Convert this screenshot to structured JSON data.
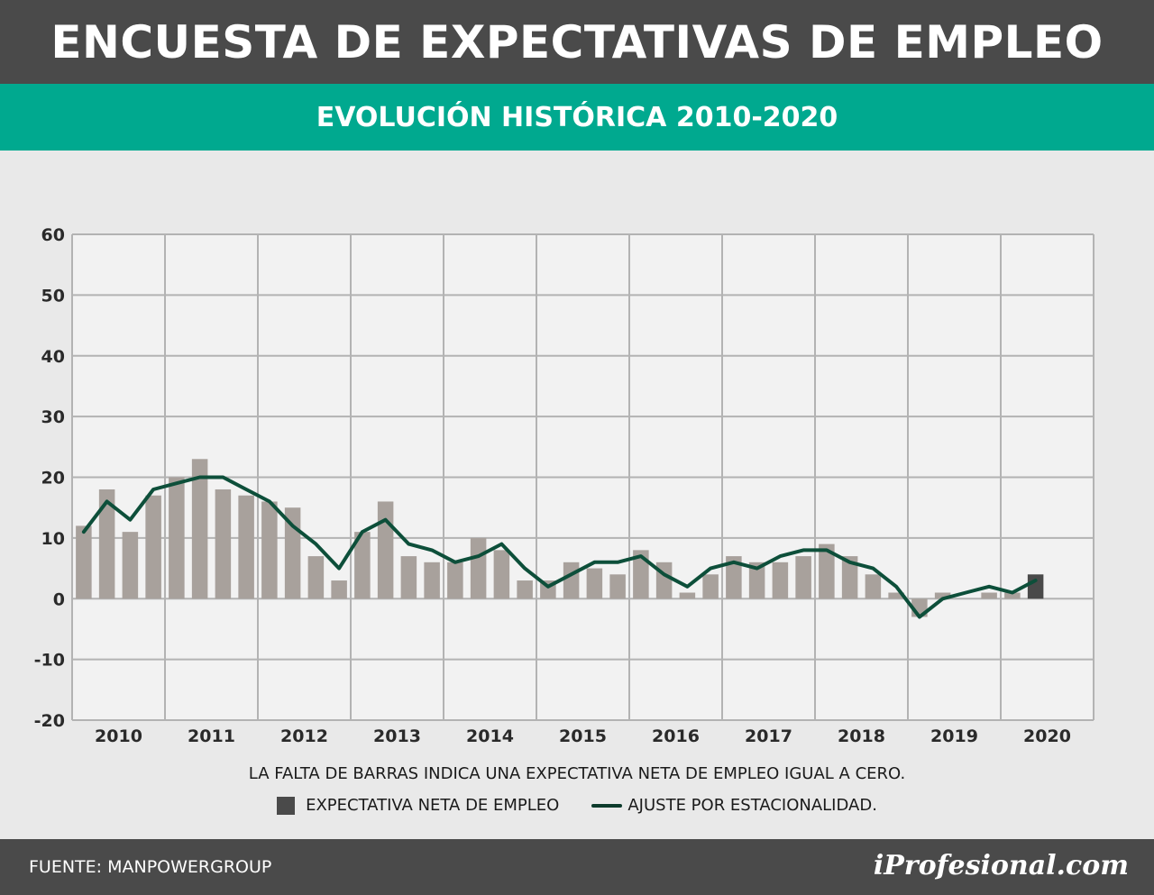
{
  "header": {
    "title": "ENCUESTA DE EXPECTATIVAS DE EMPLEO",
    "subtitle": "EVOLUCIÓN HISTÓRICA 2010-2020"
  },
  "chart_data": {
    "type": "bar",
    "title": "",
    "xlabel": "",
    "ylabel": "",
    "ylim": [
      -20,
      60
    ],
    "y_ticks": [
      60,
      50,
      40,
      30,
      20,
      10,
      0,
      -10,
      -20
    ],
    "x_tick_labels": [
      "2010",
      "2011",
      "2012",
      "2013",
      "2014",
      "2015",
      "2016",
      "2017",
      "2018",
      "2019",
      "2020"
    ],
    "grid": true,
    "categories": [
      "2010-Q1",
      "2010-Q2",
      "2010-Q3",
      "2010-Q4",
      "2011-Q1",
      "2011-Q2",
      "2011-Q3",
      "2011-Q4",
      "2012-Q1",
      "2012-Q2",
      "2012-Q3",
      "2012-Q4",
      "2013-Q1",
      "2013-Q2",
      "2013-Q3",
      "2013-Q4",
      "2014-Q1",
      "2014-Q2",
      "2014-Q3",
      "2014-Q4",
      "2015-Q1",
      "2015-Q2",
      "2015-Q3",
      "2015-Q4",
      "2016-Q1",
      "2016-Q2",
      "2016-Q3",
      "2016-Q4",
      "2017-Q1",
      "2017-Q2",
      "2017-Q3",
      "2017-Q4",
      "2018-Q1",
      "2018-Q2",
      "2018-Q3",
      "2018-Q4",
      "2019-Q1",
      "2019-Q2",
      "2019-Q3",
      "2019-Q4",
      "2020-Q1",
      "2020-Q2"
    ],
    "series": [
      {
        "name": "EXPECTATIVA NETA DE EMPLEO",
        "kind": "bar",
        "values": [
          12,
          18,
          11,
          17,
          20,
          23,
          18,
          17,
          16,
          15,
          7,
          3,
          11,
          16,
          7,
          6,
          6,
          10,
          8,
          3,
          3,
          6,
          5,
          4,
          8,
          6,
          1,
          4,
          7,
          6,
          6,
          7,
          9,
          7,
          4,
          1,
          -3,
          1,
          0,
          1,
          1,
          4
        ]
      },
      {
        "name": "AJUSTE POR ESTACIONALIDAD.",
        "kind": "line",
        "values": [
          11,
          16,
          13,
          18,
          19,
          20,
          20,
          18,
          16,
          12,
          9,
          5,
          11,
          13,
          9,
          8,
          6,
          7,
          9,
          5,
          2,
          4,
          6,
          6,
          7,
          4,
          2,
          5,
          6,
          5,
          7,
          8,
          8,
          6,
          5,
          2,
          -3,
          0,
          1,
          2,
          1,
          3
        ]
      }
    ],
    "highlight_index": 41,
    "colors": {
      "bar": "#a8a19c",
      "bar_highlight": "#4a4a4a",
      "line": "#0d4f3a",
      "grid": "#b3b3b3",
      "plot_bg": "#f2f2f2"
    },
    "note": "LA FALTA DE BARRAS INDICA UNA EXPECTATIVA NETA DE EMPLEO IGUAL A CERO.",
    "legend": [
      {
        "label": "EXPECTATIVA NETA DE EMPLEO"
      },
      {
        "label": "AJUSTE POR ESTACIONALIDAD."
      }
    ]
  },
  "footer": {
    "source": "FUENTE: MANPOWERGROUP",
    "brand": "iProfesional.com"
  }
}
